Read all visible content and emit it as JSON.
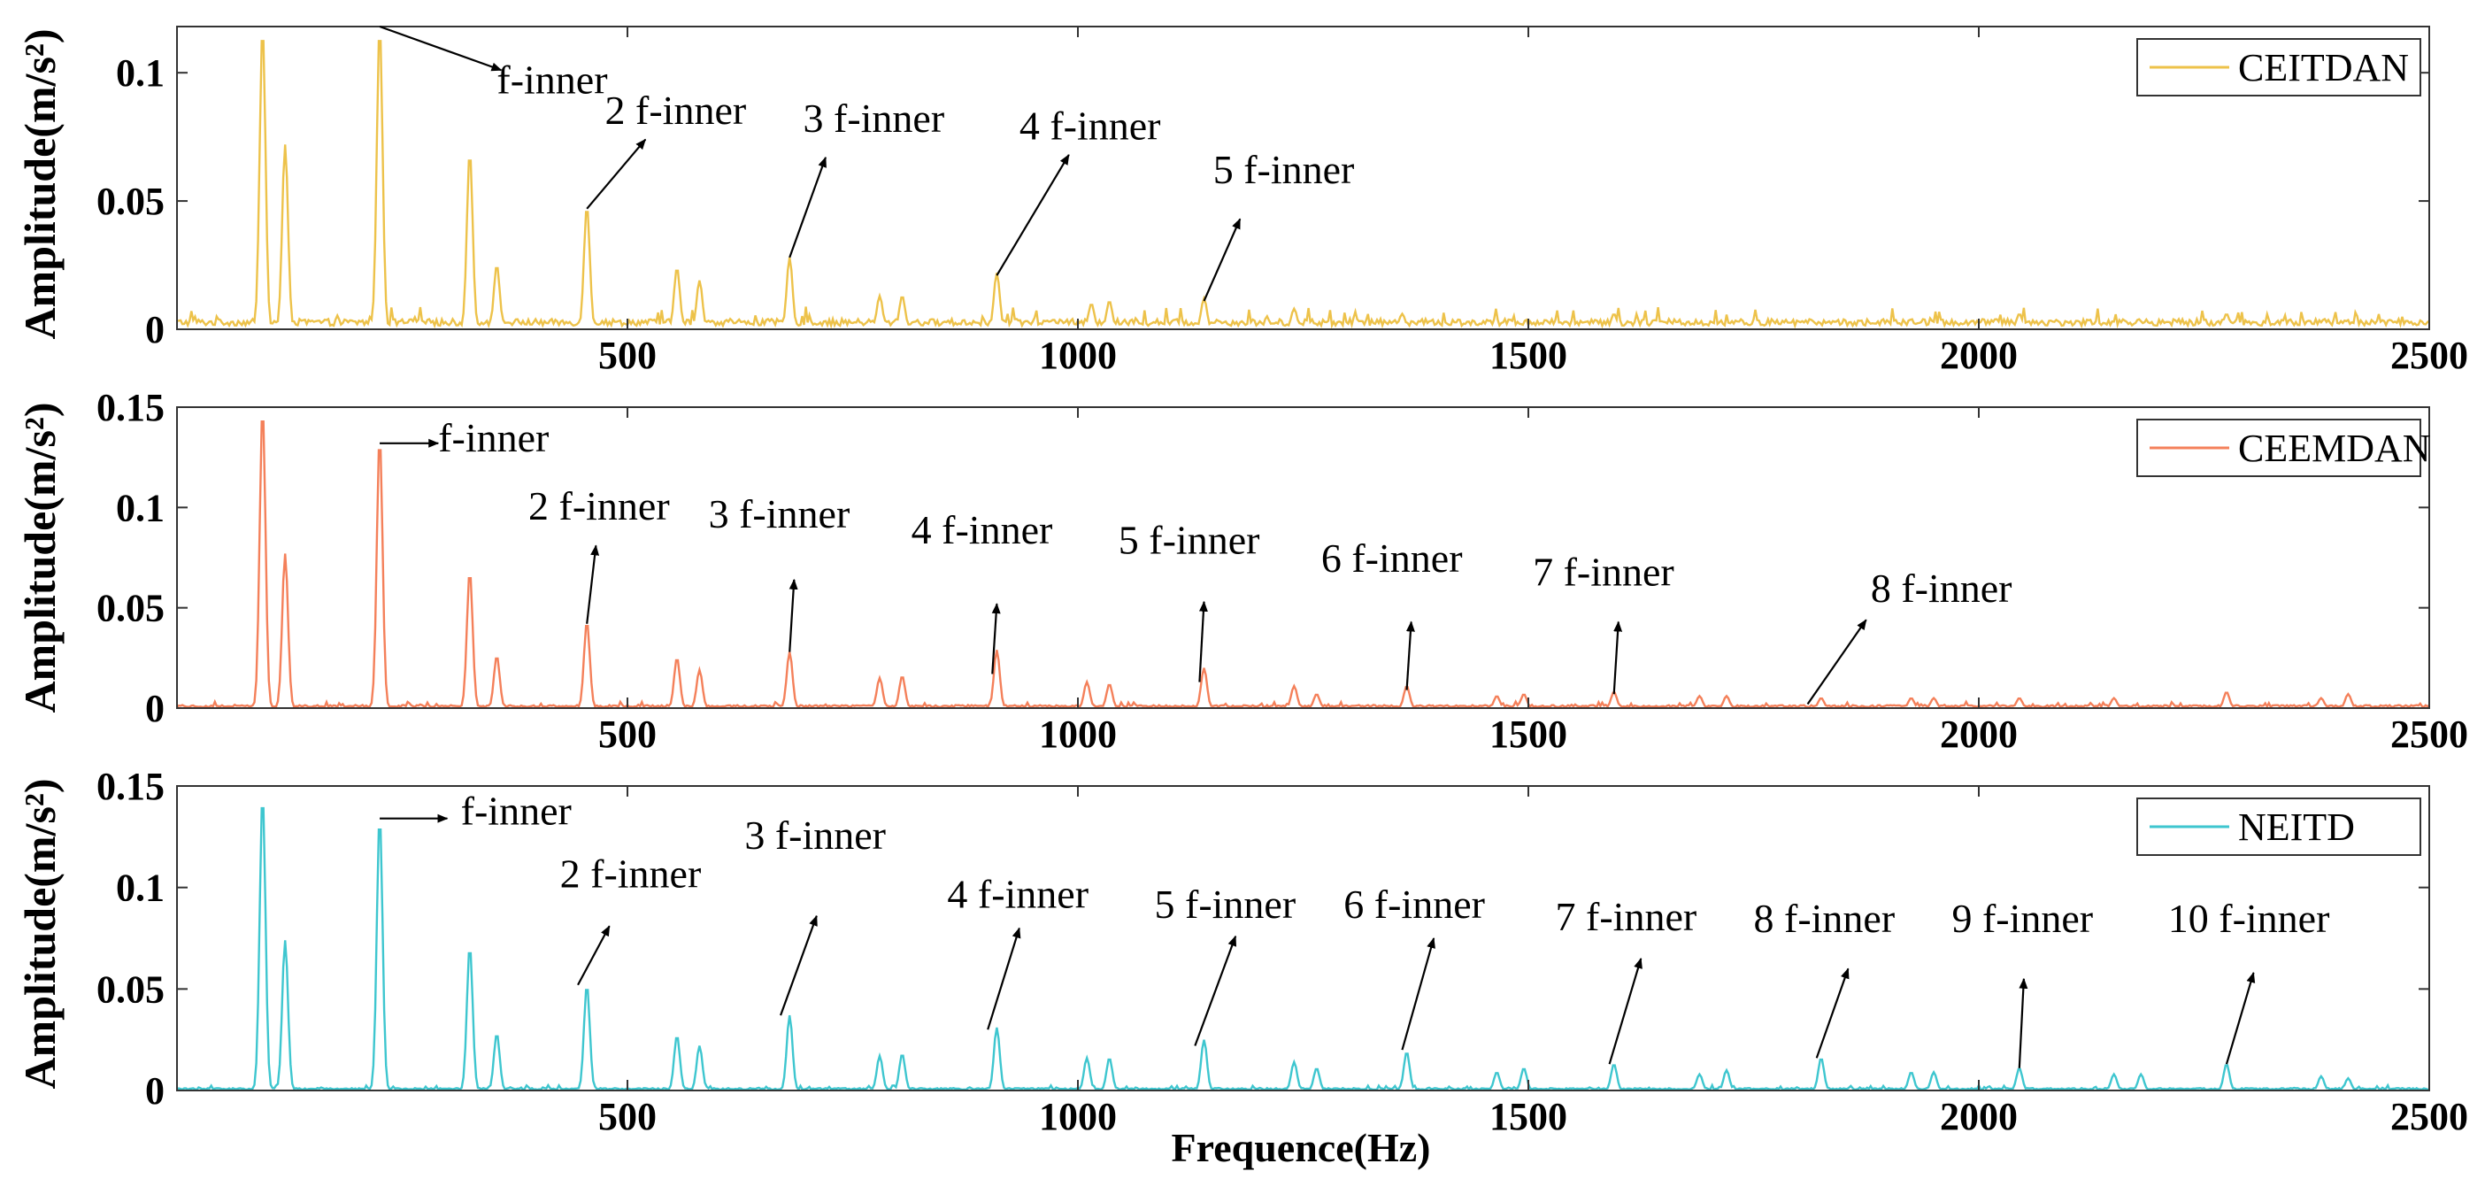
{
  "chart_data": [
    {
      "type": "line",
      "title": "",
      "xlabel": "",
      "ylabel": "Amplitude(m/s²)",
      "xlim": [
        0,
        2500
      ],
      "ylim": [
        0,
        0.118
      ],
      "xticks": [
        500,
        1000,
        1500,
        2000,
        2500
      ],
      "xtick_labels": [
        "500",
        "1000",
        "1500",
        "2000",
        "2500"
      ],
      "yticks": [
        0,
        0.05,
        0.1
      ],
      "ytick_labels": [
        "0",
        "0.05",
        "0.1"
      ],
      "legend": "CEITDAN",
      "legend_position": "top-right",
      "color": "#EDC24A",
      "noise": 0.004,
      "peaks": [
        [
          95,
          0.118
        ],
        [
          120,
          0.072
        ],
        [
          225,
          0.118
        ],
        [
          325,
          0.069
        ],
        [
          355,
          0.025
        ],
        [
          455,
          0.048
        ],
        [
          555,
          0.024
        ],
        [
          580,
          0.019
        ],
        [
          680,
          0.028
        ],
        [
          780,
          0.013
        ],
        [
          805,
          0.013
        ],
        [
          910,
          0.022
        ],
        [
          1015,
          0.01
        ],
        [
          1035,
          0.011
        ],
        [
          1140,
          0.012
        ],
        [
          1240,
          0.008
        ],
        [
          1360,
          0.006
        ],
        [
          1595,
          0.006
        ],
        [
          2045,
          0.006
        ],
        [
          2275,
          0.006
        ]
      ],
      "annotations": [
        {
          "label": "f-inner",
          "from": [
            225,
            0.118
          ],
          "to": [
            360,
            0.101
          ],
          "text_at": [
            355,
            0.092
          ]
        },
        {
          "label": "2 f-inner",
          "from": [
            455,
            0.047
          ],
          "to": [
            520,
            0.074
          ],
          "text_at": [
            475,
            0.08
          ]
        },
        {
          "label": "3 f-inner",
          "from": [
            680,
            0.028
          ],
          "to": [
            720,
            0.067
          ],
          "text_at": [
            695,
            0.077
          ]
        },
        {
          "label": "4 f-inner",
          "from": [
            910,
            0.021
          ],
          "to": [
            990,
            0.068
          ],
          "text_at": [
            935,
            0.074
          ]
        },
        {
          "label": "5 f-inner",
          "from": [
            1140,
            0.011
          ],
          "to": [
            1180,
            0.043
          ],
          "text_at": [
            1150,
            0.057
          ]
        }
      ]
    },
    {
      "type": "line",
      "title": "",
      "xlabel": "",
      "ylabel": "Amplitude(m/s²)",
      "xlim": [
        0,
        2500
      ],
      "ylim": [
        0,
        0.15
      ],
      "xticks": [
        500,
        1000,
        1500,
        2000,
        2500
      ],
      "xtick_labels": [
        "500",
        "1000",
        "1500",
        "2000",
        "2500"
      ],
      "yticks": [
        0,
        0.05,
        0.1,
        0.15
      ],
      "ytick_labels": [
        "0",
        "0.05",
        "0.1",
        "0.15"
      ],
      "legend": "CEEMDAN",
      "legend_position": "top-right",
      "color": "#F4805A",
      "noise": 0.0015,
      "peaks": [
        [
          95,
          0.15
        ],
        [
          120,
          0.077
        ],
        [
          225,
          0.135
        ],
        [
          325,
          0.068
        ],
        [
          355,
          0.026
        ],
        [
          455,
          0.043
        ],
        [
          555,
          0.025
        ],
        [
          580,
          0.019
        ],
        [
          680,
          0.028
        ],
        [
          780,
          0.015
        ],
        [
          805,
          0.016
        ],
        [
          910,
          0.029
        ],
        [
          1010,
          0.013
        ],
        [
          1035,
          0.012
        ],
        [
          1140,
          0.02
        ],
        [
          1240,
          0.011
        ],
        [
          1265,
          0.007
        ],
        [
          1365,
          0.011
        ],
        [
          1465,
          0.006
        ],
        [
          1495,
          0.007
        ],
        [
          1595,
          0.008
        ],
        [
          1690,
          0.006
        ],
        [
          1720,
          0.006
        ],
        [
          1825,
          0.005
        ],
        [
          1925,
          0.005
        ],
        [
          1950,
          0.005
        ],
        [
          2045,
          0.005
        ],
        [
          2150,
          0.005
        ],
        [
          2275,
          0.008
        ],
        [
          2380,
          0.005
        ],
        [
          2410,
          0.007
        ]
      ],
      "annotations": [
        {
          "label": "f-inner",
          "from": [
            225,
            0.132
          ],
          "to": [
            290,
            0.132
          ],
          "text_at": [
            290,
            0.128
          ]
        },
        {
          "label": "2 f-inner",
          "from": [
            455,
            0.042
          ],
          "to": [
            465,
            0.081
          ],
          "text_at": [
            390,
            0.094
          ]
        },
        {
          "label": "3 f-inner",
          "from": [
            680,
            0.028
          ],
          "to": [
            685,
            0.064
          ],
          "text_at": [
            590,
            0.09
          ]
        },
        {
          "label": "4 f-inner",
          "from": [
            905,
            0.017
          ],
          "to": [
            910,
            0.052
          ],
          "text_at": [
            815,
            0.082
          ]
        },
        {
          "label": "5 f-inner",
          "from": [
            1135,
            0.013
          ],
          "to": [
            1140,
            0.053
          ],
          "text_at": [
            1045,
            0.077
          ]
        },
        {
          "label": "6 f-inner",
          "from": [
            1365,
            0.009
          ],
          "to": [
            1370,
            0.043
          ],
          "text_at": [
            1270,
            0.068
          ]
        },
        {
          "label": "7 f-inner",
          "from": [
            1595,
            0.007
          ],
          "to": [
            1600,
            0.043
          ],
          "text_at": [
            1505,
            0.061
          ]
        },
        {
          "label": "8 f-inner",
          "from": [
            1810,
            0.002
          ],
          "to": [
            1875,
            0.044
          ],
          "text_at": [
            1880,
            0.053
          ]
        }
      ]
    },
    {
      "type": "line",
      "title": "",
      "xlabel": "Frequence(Hz)",
      "ylabel": "Amplitude(m/s²)",
      "xlim": [
        0,
        2500
      ],
      "ylim": [
        0,
        0.15
      ],
      "xticks": [
        500,
        1000,
        1500,
        2000,
        2500
      ],
      "xtick_labels": [
        "500",
        "1000",
        "1500",
        "2000",
        "2500"
      ],
      "yticks": [
        0,
        0.05,
        0.1,
        0.15
      ],
      "ytick_labels": [
        "0",
        "0.05",
        "0.1",
        "0.15"
      ],
      "legend": "NEITD",
      "legend_position": "top-right",
      "color": "#3EC6CF",
      "noise": 0.0012,
      "peaks": [
        [
          95,
          0.146
        ],
        [
          120,
          0.074
        ],
        [
          225,
          0.135
        ],
        [
          325,
          0.071
        ],
        [
          355,
          0.028
        ],
        [
          455,
          0.052
        ],
        [
          555,
          0.027
        ],
        [
          580,
          0.022
        ],
        [
          680,
          0.037
        ],
        [
          780,
          0.017
        ],
        [
          805,
          0.018
        ],
        [
          910,
          0.031
        ],
        [
          1010,
          0.016
        ],
        [
          1035,
          0.016
        ],
        [
          1140,
          0.025
        ],
        [
          1240,
          0.014
        ],
        [
          1265,
          0.011
        ],
        [
          1365,
          0.019
        ],
        [
          1465,
          0.009
        ],
        [
          1495,
          0.011
        ],
        [
          1595,
          0.013
        ],
        [
          1690,
          0.008
        ],
        [
          1720,
          0.01
        ],
        [
          1825,
          0.016
        ],
        [
          1925,
          0.009
        ],
        [
          1950,
          0.009
        ],
        [
          2045,
          0.011
        ],
        [
          2150,
          0.008
        ],
        [
          2180,
          0.008
        ],
        [
          2275,
          0.013
        ],
        [
          2380,
          0.007
        ],
        [
          2410,
          0.006
        ]
      ],
      "annotations": [
        {
          "label": "f-inner",
          "from": [
            225,
            0.134
          ],
          "to": [
            300,
            0.134
          ],
          "text_at": [
            315,
            0.131
          ]
        },
        {
          "label": "2 f-inner",
          "from": [
            445,
            0.052
          ],
          "to": [
            480,
            0.081
          ],
          "text_at": [
            425,
            0.1
          ]
        },
        {
          "label": "3 f-inner",
          "from": [
            670,
            0.037
          ],
          "to": [
            710,
            0.086
          ],
          "text_at": [
            630,
            0.119
          ]
        },
        {
          "label": "4 f-inner",
          "from": [
            900,
            0.03
          ],
          "to": [
            935,
            0.08
          ],
          "text_at": [
            855,
            0.09
          ]
        },
        {
          "label": "5 f-inner",
          "from": [
            1130,
            0.022
          ],
          "to": [
            1175,
            0.076
          ],
          "text_at": [
            1085,
            0.085
          ]
        },
        {
          "label": "6 f-inner",
          "from": [
            1360,
            0.02
          ],
          "to": [
            1395,
            0.075
          ],
          "text_at": [
            1295,
            0.085
          ]
        },
        {
          "label": "7 f-inner",
          "from": [
            1590,
            0.013
          ],
          "to": [
            1625,
            0.065
          ],
          "text_at": [
            1530,
            0.079
          ]
        },
        {
          "label": "8 f-inner",
          "from": [
            1820,
            0.016
          ],
          "to": [
            1855,
            0.06
          ],
          "text_at": [
            1750,
            0.078
          ]
        },
        {
          "label": "9 f-inner",
          "from": [
            2045,
            0.011
          ],
          "to": [
            2050,
            0.055
          ],
          "text_at": [
            1970,
            0.078
          ]
        },
        {
          "label": "10 f-inner",
          "from": [
            2275,
            0.013
          ],
          "to": [
            2305,
            0.058
          ],
          "text_at": [
            2210,
            0.078
          ]
        }
      ]
    }
  ]
}
